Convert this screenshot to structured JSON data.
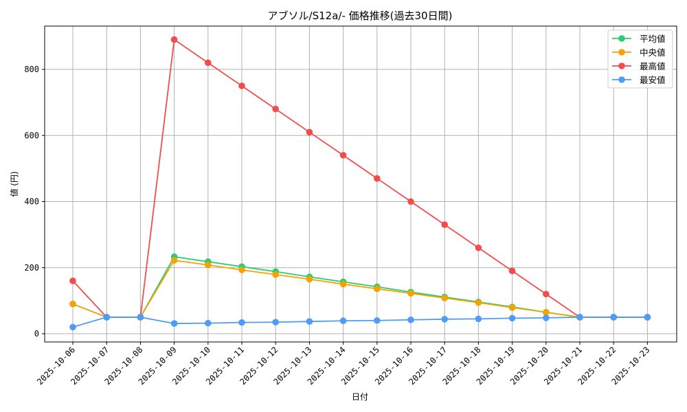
{
  "chart_data": {
    "type": "line",
    "title": "アブソル/S12a/- 価格推移(過去30日間)",
    "xlabel": "日付",
    "ylabel": "値 (円)",
    "ylim": [
      -25,
      930
    ],
    "yticks": [
      0,
      200,
      400,
      600,
      800
    ],
    "grid": true,
    "legend_position": "upper right",
    "categories": [
      "2025-10-06",
      "2025-10-07",
      "2025-10-08",
      "2025-10-09",
      "2025-10-10",
      "2025-10-11",
      "2025-10-12",
      "2025-10-13",
      "2025-10-14",
      "2025-10-15",
      "2025-10-16",
      "2025-10-17",
      "2025-10-18",
      "2025-10-19",
      "2025-10-20",
      "2025-10-21",
      "2025-10-22",
      "2025-10-23"
    ],
    "series": [
      {
        "name": "平均値",
        "color": "#2ecc71",
        "values": [
          90,
          50,
          50,
          233,
          218,
          203,
          188,
          172,
          157,
          142,
          126,
          111,
          96,
          81,
          65,
          50,
          50,
          50
        ]
      },
      {
        "name": "中央値",
        "color": "#f5a300",
        "values": [
          90,
          50,
          50,
          222,
          208,
          193,
          179,
          165,
          150,
          136,
          122,
          108,
          94,
          79,
          65,
          50,
          50,
          50
        ]
      },
      {
        "name": "最高値",
        "color": "#f44b4b",
        "values": [
          160,
          50,
          50,
          890,
          820,
          750,
          680,
          610,
          540,
          470,
          400,
          330,
          260,
          190,
          120,
          50,
          50,
          50
        ]
      },
      {
        "name": "最安値",
        "color": "#4d9cf8",
        "values": [
          20,
          50,
          50,
          31,
          32,
          34,
          35,
          37,
          39,
          40,
          42,
          44,
          45,
          47,
          48,
          50,
          50,
          50
        ]
      }
    ]
  }
}
